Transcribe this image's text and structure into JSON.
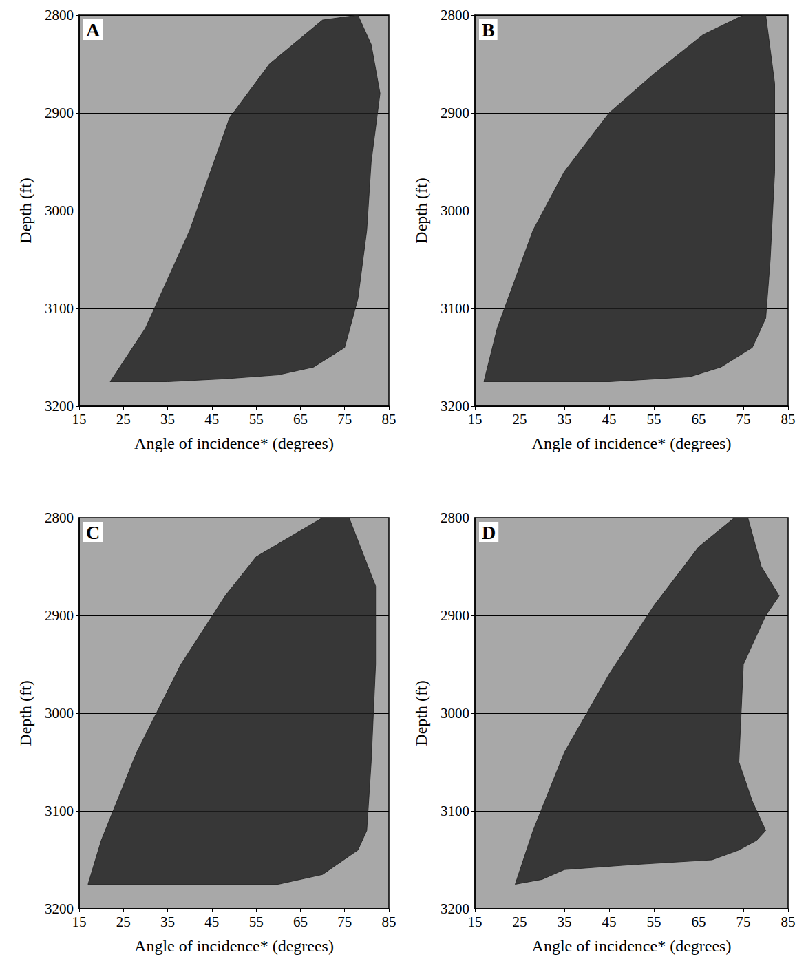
{
  "chart_data": [
    {
      "type": "area",
      "title": "A",
      "xlabel": "Angle of incidence* (degrees)",
      "ylabel": "Depth (ft)",
      "x": [
        22,
        30,
        40,
        49,
        58,
        70,
        78,
        81,
        83,
        81,
        80,
        78,
        75,
        68,
        60,
        48,
        35,
        22
      ],
      "values": [
        3175,
        3120,
        3020,
        2905,
        2850,
        2805,
        2800,
        2830,
        2880,
        2950,
        3020,
        3090,
        3140,
        3160,
        3168,
        3172,
        3175,
        3175
      ],
      "xlim": [
        15,
        85
      ],
      "ylim": [
        3200,
        2800
      ],
      "xticks": [
        15,
        25,
        35,
        45,
        55,
        65,
        75,
        85
      ],
      "yticks": [
        2800,
        2900,
        3000,
        3100,
        3200
      ],
      "grid": true,
      "color": "#1e1e1e"
    },
    {
      "type": "area",
      "title": "B",
      "xlabel": "Angle of incidence* (degrees)",
      "ylabel": "Depth (ft)",
      "x": [
        17,
        20,
        28,
        35,
        45,
        55,
        66,
        75,
        80,
        82,
        82,
        81,
        80,
        77,
        70,
        63,
        45,
        17
      ],
      "values": [
        3175,
        3120,
        3020,
        2960,
        2900,
        2860,
        2820,
        2800,
        2800,
        2870,
        2960,
        3050,
        3110,
        3140,
        3160,
        3170,
        3175,
        3175
      ],
      "xlim": [
        15,
        85
      ],
      "ylim": [
        3200,
        2800
      ],
      "xticks": [
        15,
        25,
        35,
        45,
        55,
        65,
        75,
        85
      ],
      "yticks": [
        2800,
        2900,
        3000,
        3100,
        3200
      ],
      "grid": true,
      "color": "#1e1e1e"
    },
    {
      "type": "area",
      "title": "C",
      "xlabel": "Angle of incidence* (degrees)",
      "ylabel": "Depth (ft)",
      "x": [
        17,
        20,
        28,
        38,
        48,
        55,
        70,
        76,
        82,
        82,
        81,
        80,
        78,
        70,
        60,
        17
      ],
      "values": [
        3175,
        3130,
        3040,
        2950,
        2880,
        2840,
        2800,
        2800,
        2870,
        2950,
        3050,
        3120,
        3140,
        3165,
        3175,
        3175
      ],
      "xlim": [
        15,
        85
      ],
      "ylim": [
        3200,
        2800
      ],
      "xticks": [
        15,
        25,
        35,
        45,
        55,
        65,
        75,
        85
      ],
      "yticks": [
        2800,
        2900,
        3000,
        3100,
        3200
      ],
      "grid": true,
      "color": "#1e1e1e"
    },
    {
      "type": "area",
      "title": "D",
      "xlabel": "Angle of incidence* (degrees)",
      "ylabel": "Depth (ft)",
      "x": [
        24,
        28,
        35,
        45,
        55,
        65,
        73,
        76,
        79,
        83,
        80,
        75,
        74,
        77,
        80,
        78,
        74,
        68,
        50,
        35,
        30,
        24
      ],
      "values": [
        3175,
        3120,
        3040,
        2960,
        2890,
        2830,
        2800,
        2800,
        2850,
        2880,
        2900,
        2950,
        3050,
        3090,
        3120,
        3130,
        3140,
        3150,
        3155,
        3160,
        3170,
        3175
      ],
      "xlim": [
        15,
        85
      ],
      "ylim": [
        3200,
        2800
      ],
      "xticks": [
        15,
        25,
        35,
        45,
        55,
        65,
        75,
        85
      ],
      "yticks": [
        2800,
        2900,
        3000,
        3100,
        3200
      ],
      "grid": true,
      "color": "#1e1e1e"
    }
  ]
}
